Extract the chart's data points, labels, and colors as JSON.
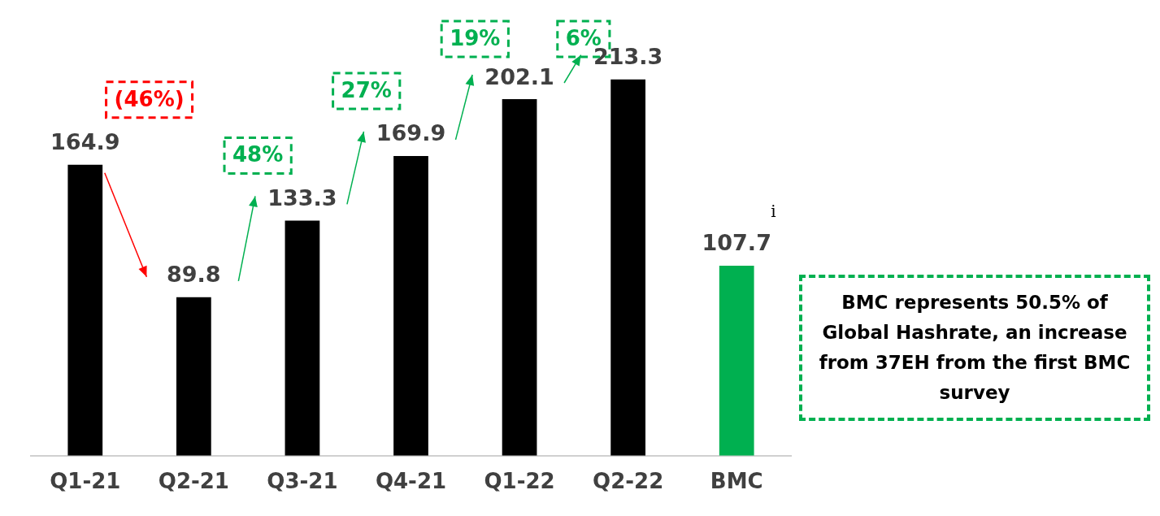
{
  "chart_data": {
    "type": "bar",
    "categories": [
      "Q1-21",
      "Q2-21",
      "Q3-21",
      "Q4-21",
      "Q1-22",
      "Q2-22",
      "BMC"
    ],
    "values": [
      164.9,
      89.8,
      133.3,
      169.9,
      202.1,
      213.3,
      107.7
    ],
    "colors": [
      "#000000",
      "#000000",
      "#000000",
      "#000000",
      "#000000",
      "#000000",
      "#00b050"
    ],
    "data_labels": true,
    "annotations": [
      "(46%)",
      "48%",
      "27%",
      "19%",
      "6%",
      "i",
      "BMC represents 50.5% of Global Hashrate, an increase from 37EH from the first BMC survey"
    ],
    "grid": false,
    "legend": false
  }
}
